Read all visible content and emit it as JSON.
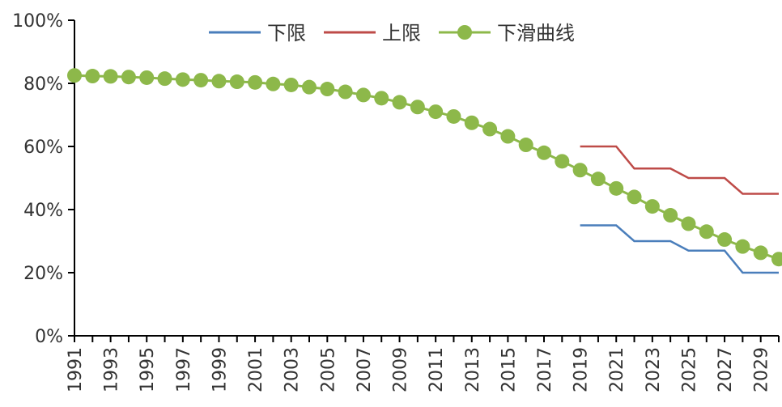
{
  "chart_data": {
    "type": "line",
    "title": "",
    "xlabel": "",
    "ylabel": "",
    "ylim": [
      0,
      1
    ],
    "xlim": [
      1991,
      2030
    ],
    "y_ticks": [
      0,
      0.2,
      0.4,
      0.6,
      0.8,
      1.0
    ],
    "y_tick_labels": [
      "0%",
      "20%",
      "40%",
      "60%",
      "80%",
      "100%"
    ],
    "x_ticks": [
      1991,
      1993,
      1995,
      1997,
      1999,
      2001,
      2003,
      2005,
      2007,
      2009,
      2011,
      2013,
      2015,
      2017,
      2019,
      2021,
      2023,
      2025,
      2027,
      2029
    ],
    "x_tick_labels": [
      "1991",
      "1993",
      "1995",
      "1997",
      "1999",
      "2001",
      "2003",
      "2005",
      "2007",
      "2009",
      "2011",
      "2013",
      "2015",
      "2017",
      "2019",
      "2021",
      "2023",
      "2025",
      "2027",
      "2029"
    ],
    "grid": false,
    "legend_position": "top",
    "series": [
      {
        "name": "下限",
        "color": "#4a7ebb",
        "style": "line",
        "x": [
          2019,
          2020,
          2021,
          2022,
          2023,
          2024,
          2025,
          2026,
          2027,
          2028,
          2029,
          2030
        ],
        "values": [
          0.35,
          0.35,
          0.35,
          0.3,
          0.3,
          0.3,
          0.27,
          0.27,
          0.27,
          0.2,
          0.2,
          0.2
        ]
      },
      {
        "name": "上限",
        "color": "#be4b48",
        "style": "line",
        "x": [
          2019,
          2020,
          2021,
          2022,
          2023,
          2024,
          2025,
          2026,
          2027,
          2028,
          2029,
          2030
        ],
        "values": [
          0.6,
          0.6,
          0.6,
          0.53,
          0.53,
          0.53,
          0.5,
          0.5,
          0.5,
          0.45,
          0.45,
          0.45
        ]
      },
      {
        "name": "下滑曲线",
        "color": "#8db84a",
        "style": "line-markers",
        "x": [
          1991,
          1992,
          1993,
          1994,
          1995,
          1996,
          1997,
          1998,
          1999,
          2000,
          2001,
          2002,
          2003,
          2004,
          2005,
          2006,
          2007,
          2008,
          2009,
          2010,
          2011,
          2012,
          2013,
          2014,
          2015,
          2016,
          2017,
          2018,
          2019,
          2020,
          2021,
          2022,
          2023,
          2024,
          2025,
          2026,
          2027,
          2028,
          2029,
          2030
        ],
        "values": [
          0.825,
          0.823,
          0.822,
          0.82,
          0.818,
          0.815,
          0.812,
          0.81,
          0.807,
          0.805,
          0.803,
          0.798,
          0.795,
          0.788,
          0.782,
          0.773,
          0.763,
          0.753,
          0.74,
          0.725,
          0.71,
          0.695,
          0.675,
          0.655,
          0.632,
          0.605,
          0.58,
          0.553,
          0.525,
          0.497,
          0.467,
          0.44,
          0.41,
          0.382,
          0.355,
          0.33,
          0.305,
          0.283,
          0.263,
          0.243
        ]
      }
    ]
  }
}
